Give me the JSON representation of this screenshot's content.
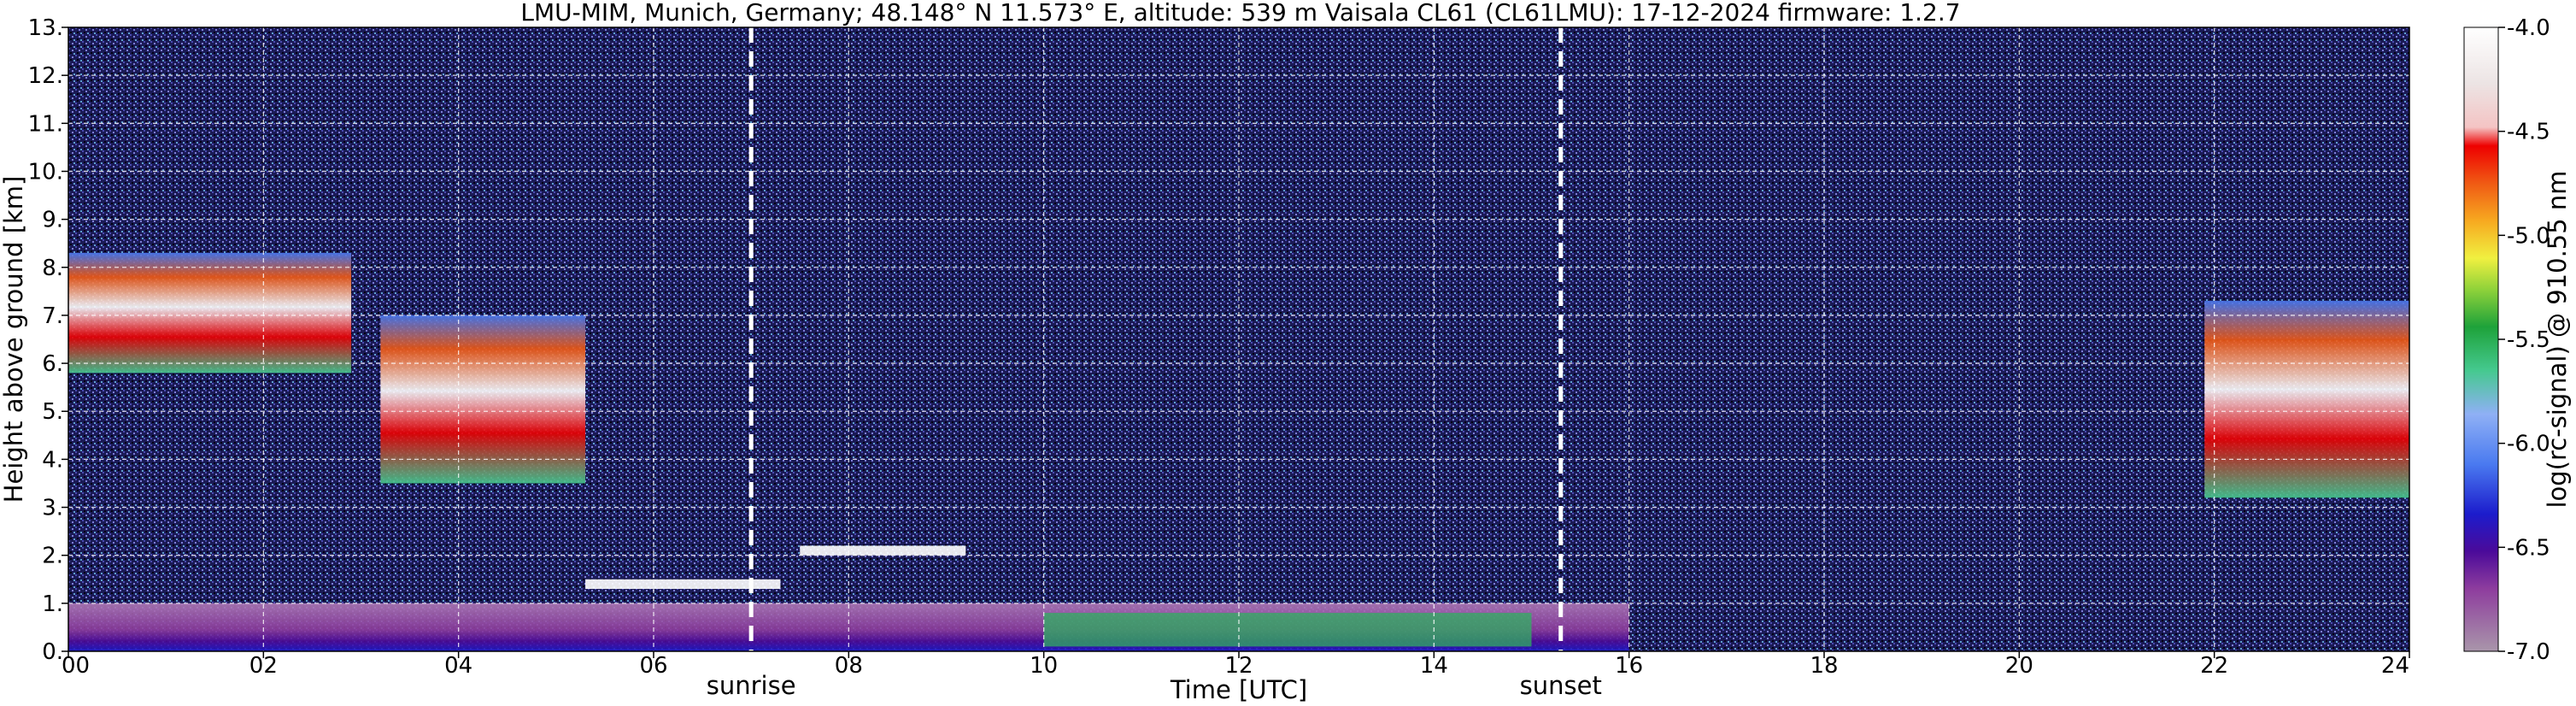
{
  "chart_data": {
    "type": "heatmap",
    "title": "LMU-MIM, Munich, Germany; 48.148° N 11.573° E, altitude: 539 m    Vaisala CL61 (CL61LMU): 17-12-2024    firmware: 1.2.7",
    "xlabel": "Time [UTC]",
    "ylabel": "Height above ground [km]",
    "colorbar_label": "log(rc-signal) @ 910.55 nm",
    "xlim": [
      0,
      24
    ],
    "ylim": [
      0,
      13
    ],
    "clim": [
      -7.0,
      -4.0
    ],
    "grid": true,
    "x_ticks": [
      0,
      2,
      4,
      6,
      8,
      10,
      12,
      14,
      16,
      18,
      20,
      22,
      24
    ],
    "x_tick_labels": [
      "00",
      "02",
      "04",
      "06",
      "08",
      "10",
      "12",
      "14",
      "16",
      "18",
      "20",
      "22",
      "24"
    ],
    "y_ticks": [
      0,
      1,
      2,
      3,
      4,
      5,
      6,
      7,
      8,
      9,
      10,
      11,
      12,
      13
    ],
    "y_tick_labels": [
      "0.",
      "1.",
      "2.",
      "3.",
      "4.",
      "5.",
      "6.",
      "7.",
      "8.",
      "9.",
      "10.",
      "11.",
      "12.",
      "13."
    ],
    "colorbar_ticks": [
      -7.0,
      -6.5,
      -6.0,
      -5.5,
      -5.0,
      -4.5,
      -4.0
    ],
    "colorbar_tick_labels": [
      "-7.0",
      "-6.5",
      "-6.0",
      "-5.5",
      "-5.0",
      "-4.5",
      "-4.0"
    ],
    "events": [
      {
        "name": "sunrise",
        "time": 7.0
      },
      {
        "name": "sunset",
        "time": 15.3
      }
    ],
    "features": [
      {
        "kind": "cloud",
        "t_start": 0.0,
        "t_end": 2.9,
        "h_bottom": 5.8,
        "h_top": 8.3,
        "level": -4.5
      },
      {
        "kind": "cloud",
        "t_start": 3.2,
        "t_end": 5.3,
        "h_bottom": 3.5,
        "h_top": 7.0,
        "level": -4.4
      },
      {
        "kind": "cloud",
        "t_start": 21.9,
        "t_end": 24.0,
        "h_bottom": 3.2,
        "h_top": 7.3,
        "level": -4.8
      },
      {
        "kind": "low cloud",
        "t_start": 5.3,
        "t_end": 7.3,
        "h_bottom": 1.3,
        "h_top": 1.5,
        "level": -4.3
      },
      {
        "kind": "low cloud",
        "t_start": 7.5,
        "t_end": 9.2,
        "h_bottom": 2.0,
        "h_top": 2.2,
        "level": -4.3
      },
      {
        "kind": "boundary layer",
        "t_start": 0.0,
        "t_end": 16.0,
        "h_bottom": 0.0,
        "h_top": 1.0,
        "level": -6.3
      },
      {
        "kind": "aerosol layer",
        "t_start": 10.0,
        "t_end": 15.0,
        "h_bottom": 0.1,
        "h_top": 0.8,
        "level": -5.8
      }
    ]
  }
}
